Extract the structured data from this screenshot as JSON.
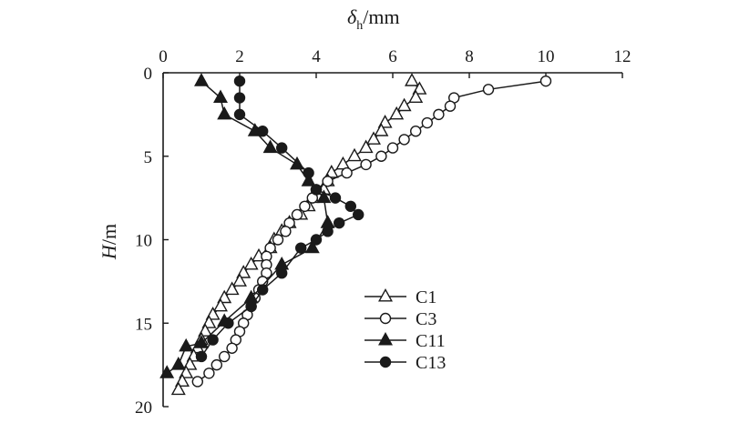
{
  "chart_data": {
    "type": "line",
    "xlabel": {
      "symbol": "δ",
      "subscript": "h",
      "unit": "/mm"
    },
    "ylabel": {
      "symbol": "H",
      "unit": "/m"
    },
    "xlim": [
      0,
      12
    ],
    "ylim": [
      0,
      20
    ],
    "x_axis_position": "top",
    "y_axis_inverted": true,
    "xticks": [
      0,
      2,
      4,
      6,
      8,
      10,
      12
    ],
    "yticks": [
      0,
      5,
      10,
      15,
      20
    ],
    "grid": false,
    "legend_position": "lower-right",
    "series": [
      {
        "name": "C1",
        "marker": "open-triangle",
        "points": [
          [
            6.5,
            0.5
          ],
          [
            6.7,
            1.0
          ],
          [
            6.6,
            1.5
          ],
          [
            6.3,
            2.0
          ],
          [
            6.1,
            2.5
          ],
          [
            5.8,
            3.0
          ],
          [
            5.7,
            3.5
          ],
          [
            5.5,
            4.0
          ],
          [
            5.3,
            4.5
          ],
          [
            5.0,
            5.0
          ],
          [
            4.7,
            5.5
          ],
          [
            4.4,
            6.0
          ],
          [
            4.3,
            6.5
          ],
          [
            4.2,
            7.0
          ],
          [
            3.9,
            7.5
          ],
          [
            3.8,
            8.0
          ],
          [
            3.6,
            8.5
          ],
          [
            3.3,
            9.0
          ],
          [
            3.1,
            9.5
          ],
          [
            2.9,
            10.0
          ],
          [
            2.8,
            10.5
          ],
          [
            2.5,
            11.0
          ],
          [
            2.3,
            11.5
          ],
          [
            2.1,
            12.0
          ],
          [
            2.0,
            12.5
          ],
          [
            1.8,
            13.0
          ],
          [
            1.6,
            13.5
          ],
          [
            1.5,
            14.0
          ],
          [
            1.3,
            14.5
          ],
          [
            1.2,
            15.0
          ],
          [
            1.1,
            15.5
          ],
          [
            1.0,
            16.0
          ],
          [
            0.9,
            16.5
          ],
          [
            0.8,
            17.0
          ],
          [
            0.7,
            17.5
          ],
          [
            0.6,
            18.0
          ],
          [
            0.5,
            18.5
          ],
          [
            0.4,
            19.0
          ]
        ]
      },
      {
        "name": "C3",
        "marker": "open-circle",
        "points": [
          [
            10.0,
            0.5
          ],
          [
            8.5,
            1.0
          ],
          [
            7.6,
            1.5
          ],
          [
            7.5,
            2.0
          ],
          [
            7.2,
            2.5
          ],
          [
            6.9,
            3.0
          ],
          [
            6.6,
            3.5
          ],
          [
            6.3,
            4.0
          ],
          [
            6.0,
            4.5
          ],
          [
            5.7,
            5.0
          ],
          [
            5.3,
            5.5
          ],
          [
            4.8,
            6.0
          ],
          [
            4.3,
            6.5
          ],
          [
            4.0,
            7.0
          ],
          [
            3.9,
            7.5
          ],
          [
            3.7,
            8.0
          ],
          [
            3.5,
            8.5
          ],
          [
            3.3,
            9.0
          ],
          [
            3.2,
            9.5
          ],
          [
            3.0,
            10.0
          ],
          [
            2.8,
            10.5
          ],
          [
            2.7,
            11.0
          ],
          [
            2.7,
            11.5
          ],
          [
            2.7,
            12.0
          ],
          [
            2.6,
            12.5
          ],
          [
            2.5,
            13.0
          ],
          [
            2.4,
            13.5
          ],
          [
            2.3,
            14.0
          ],
          [
            2.2,
            14.5
          ],
          [
            2.1,
            15.0
          ],
          [
            2.0,
            15.5
          ],
          [
            1.9,
            16.0
          ],
          [
            1.8,
            16.5
          ],
          [
            1.6,
            17.0
          ],
          [
            1.4,
            17.5
          ],
          [
            1.2,
            18.0
          ],
          [
            0.9,
            18.5
          ]
        ]
      },
      {
        "name": "C11",
        "marker": "filled-triangle",
        "points": [
          [
            1.0,
            0.5
          ],
          [
            1.5,
            1.5
          ],
          [
            1.6,
            2.5
          ],
          [
            2.4,
            3.5
          ],
          [
            2.8,
            4.5
          ],
          [
            3.5,
            5.5
          ],
          [
            3.8,
            6.5
          ],
          [
            4.2,
            7.5
          ],
          [
            4.3,
            9.0
          ],
          [
            3.9,
            10.5
          ],
          [
            3.1,
            11.5
          ],
          [
            2.3,
            13.5
          ],
          [
            1.6,
            14.9
          ],
          [
            1.0,
            16.2
          ],
          [
            0.6,
            16.4
          ],
          [
            0.4,
            17.5
          ],
          [
            0.1,
            18.0
          ]
        ]
      },
      {
        "name": "C13",
        "marker": "filled-circle",
        "points": [
          [
            2.0,
            0.5
          ],
          [
            2.0,
            1.5
          ],
          [
            2.0,
            2.5
          ],
          [
            2.6,
            3.5
          ],
          [
            3.1,
            4.5
          ],
          [
            3.8,
            6.0
          ],
          [
            4.0,
            7.0
          ],
          [
            4.5,
            7.5
          ],
          [
            4.9,
            8.0
          ],
          [
            5.1,
            8.5
          ],
          [
            4.6,
            9.0
          ],
          [
            4.3,
            9.5
          ],
          [
            4.0,
            10.0
          ],
          [
            3.6,
            10.5
          ],
          [
            3.1,
            12.0
          ],
          [
            2.6,
            13.0
          ],
          [
            2.3,
            14.0
          ],
          [
            1.7,
            15.0
          ],
          [
            1.3,
            16.0
          ],
          [
            1.0,
            17.0
          ]
        ]
      }
    ]
  }
}
